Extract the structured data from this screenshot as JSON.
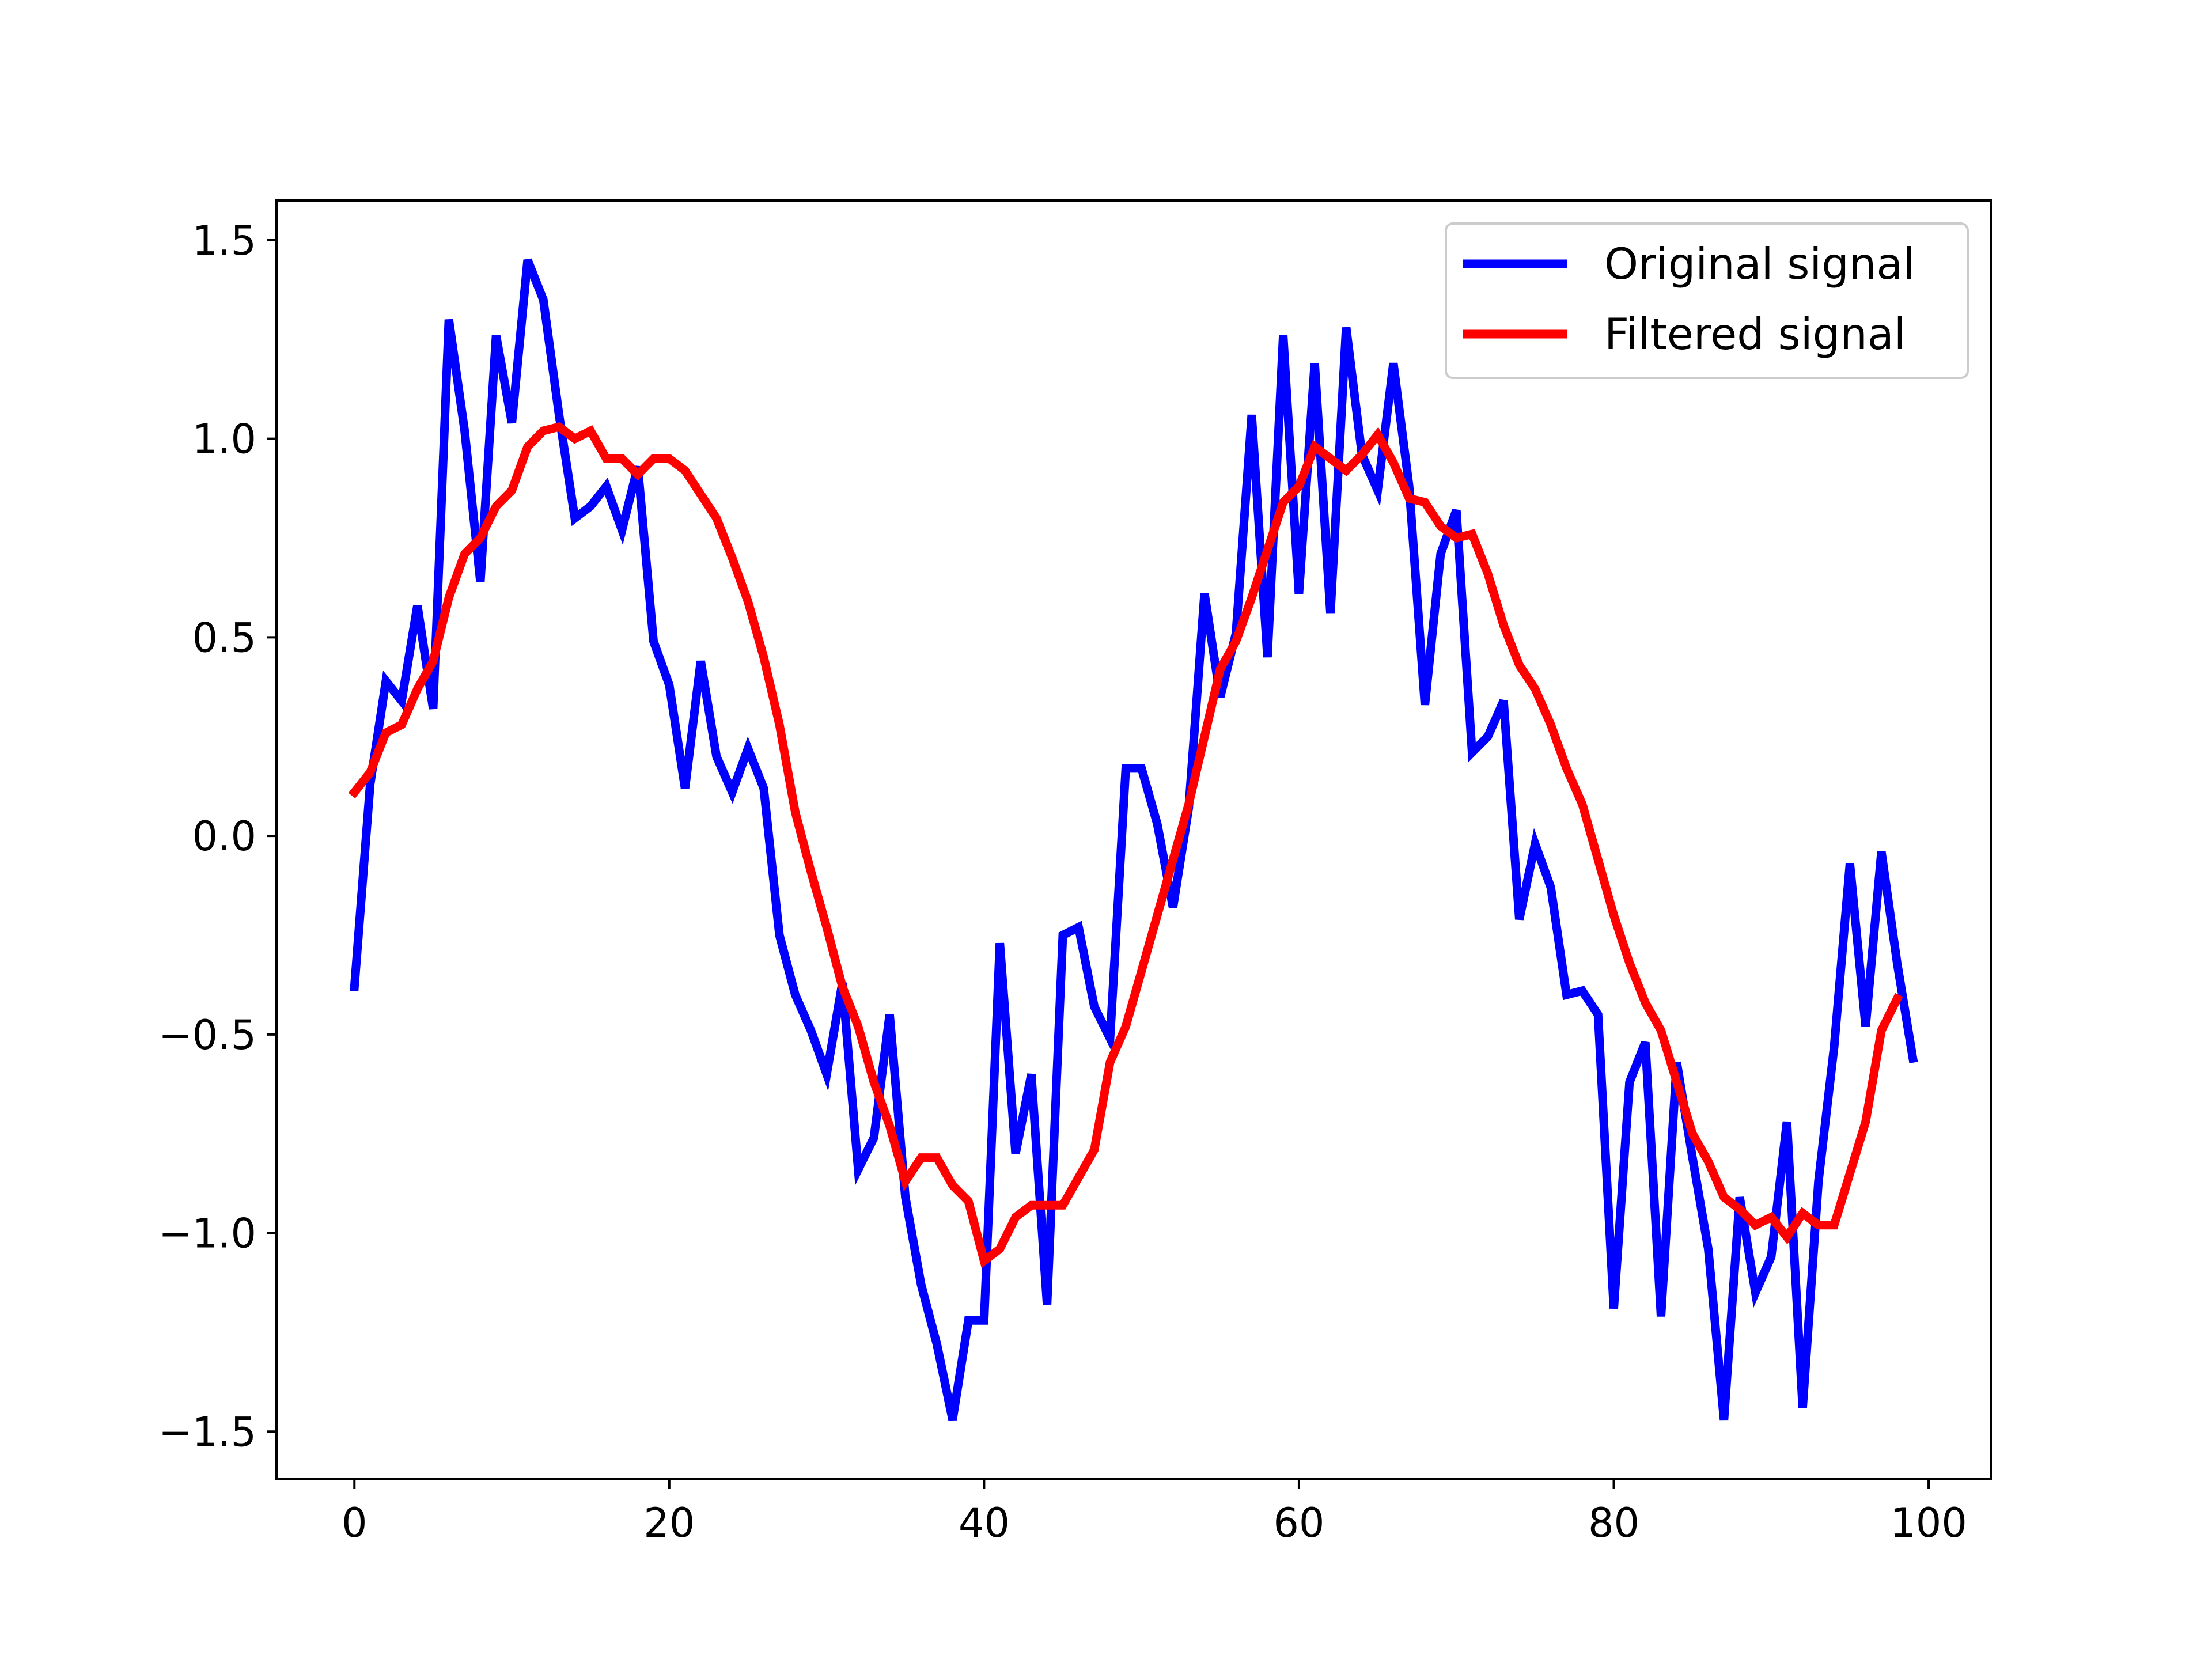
{
  "chart_data": {
    "type": "line",
    "title": "",
    "xlabel": "",
    "ylabel": "",
    "xlim": [
      -4.95,
      103.95
    ],
    "ylim": [
      -1.62,
      1.6
    ],
    "xticks": [
      0,
      20,
      40,
      60,
      80,
      100
    ],
    "yticks": [
      -1.5,
      -1.0,
      -0.5,
      0.0,
      0.5,
      1.0,
      1.5
    ],
    "xtick_labels": [
      "0",
      "20",
      "40",
      "60",
      "80",
      "100"
    ],
    "ytick_labels": [
      "−1.5",
      "−1.0",
      "−0.5",
      "0.0",
      "0.5",
      "1.0",
      "1.5"
    ],
    "grid": false,
    "legend_position": "upper right",
    "series": [
      {
        "name": "Original signal",
        "color": "#0000ff",
        "x": [
          0,
          1,
          2,
          3,
          4,
          5,
          6,
          7,
          8,
          9,
          10,
          11,
          12,
          13,
          14,
          15,
          16,
          17,
          18,
          19,
          20,
          21,
          22,
          23,
          24,
          25,
          26,
          27,
          28,
          29,
          30,
          31,
          32,
          33,
          34,
          35,
          36,
          37,
          38,
          39,
          40,
          41,
          42,
          43,
          44,
          45,
          46,
          47,
          48,
          49,
          50,
          51,
          52,
          53,
          54,
          55,
          56,
          57,
          58,
          59,
          60,
          61,
          62,
          63,
          64,
          65,
          66,
          67,
          68,
          69,
          70,
          71,
          72,
          73,
          74,
          75,
          76,
          77,
          78,
          79,
          80,
          81,
          82,
          83,
          84,
          85,
          86,
          87,
          88,
          89,
          90,
          91,
          92,
          93,
          94,
          95,
          96,
          97,
          98,
          99
        ],
        "values": [
          -0.38,
          0.13,
          0.39,
          0.34,
          0.58,
          0.32,
          1.3,
          1.02,
          0.64,
          1.26,
          1.04,
          1.45,
          1.35,
          1.06,
          0.8,
          0.83,
          0.88,
          0.77,
          0.93,
          0.49,
          0.38,
          0.12,
          0.44,
          0.2,
          0.11,
          0.22,
          0.12,
          -0.25,
          -0.4,
          -0.49,
          -0.6,
          -0.37,
          -0.84,
          -0.76,
          -0.45,
          -0.91,
          -1.13,
          -1.28,
          -1.47,
          -1.22,
          -1.22,
          -0.27,
          -0.8,
          -0.6,
          -1.18,
          -0.25,
          -0.23,
          -0.43,
          -0.51,
          0.17,
          0.17,
          0.03,
          -0.18,
          0.07,
          0.61,
          0.35,
          0.51,
          1.06,
          0.45,
          1.26,
          0.61,
          1.19,
          0.56,
          1.28,
          0.96,
          0.87,
          1.19,
          0.88,
          0.33,
          0.71,
          0.82,
          0.21,
          0.25,
          0.34,
          -0.21,
          -0.02,
          -0.13,
          -0.4,
          -0.39,
          -0.45,
          -1.19,
          -0.62,
          -0.52,
          -1.21,
          -0.57,
          -0.81,
          -1.04,
          -1.47,
          -0.91,
          -1.15,
          -1.06,
          -0.72,
          -1.44,
          -0.87,
          -0.53,
          -0.07,
          -0.48,
          -0.04,
          -0.32,
          -0.56
        ]
      },
      {
        "name": "Filtered signal",
        "color": "#ff0000",
        "x": [
          0,
          1,
          2,
          3,
          4,
          5,
          6,
          7,
          8,
          9,
          10,
          11,
          12,
          13,
          14,
          15,
          16,
          17,
          18,
          19,
          20,
          21,
          22,
          23,
          24,
          25,
          26,
          27,
          28,
          29,
          30,
          31,
          32,
          33,
          34,
          35,
          36,
          37,
          38,
          39,
          40,
          41,
          42,
          43,
          44,
          45,
          46,
          47,
          48,
          49,
          50,
          51,
          52,
          53,
          54,
          55,
          56,
          57,
          58,
          59,
          60,
          61,
          62,
          63,
          64,
          65,
          66,
          67,
          68,
          69,
          70,
          71,
          72,
          73,
          74,
          75,
          76,
          77,
          78,
          79,
          80,
          81,
          82,
          83,
          84,
          85,
          86,
          87,
          88,
          89,
          90,
          91,
          92,
          93,
          94,
          95,
          96,
          97,
          98
        ],
        "values": [
          0.11,
          0.16,
          0.26,
          0.28,
          0.37,
          0.44,
          0.6,
          0.71,
          0.75,
          0.83,
          0.87,
          0.98,
          1.02,
          1.03,
          1.0,
          1.02,
          0.95,
          0.95,
          0.91,
          0.95,
          0.95,
          0.92,
          0.86,
          0.8,
          0.7,
          0.59,
          0.45,
          0.28,
          0.06,
          -0.09,
          -0.23,
          -0.38,
          -0.48,
          -0.62,
          -0.73,
          -0.87,
          -0.81,
          -0.81,
          -0.88,
          -0.92,
          -1.07,
          -1.04,
          -0.96,
          -0.93,
          -0.93,
          -0.93,
          -0.86,
          -0.79,
          -0.57,
          -0.48,
          -0.34,
          -0.2,
          -0.06,
          0.08,
          0.25,
          0.42,
          0.49,
          0.6,
          0.72,
          0.84,
          0.88,
          0.98,
          0.95,
          0.92,
          0.96,
          1.01,
          0.94,
          0.85,
          0.84,
          0.78,
          0.75,
          0.76,
          0.66,
          0.53,
          0.43,
          0.37,
          0.28,
          0.17,
          0.08,
          -0.06,
          -0.2,
          -0.32,
          -0.42,
          -0.49,
          -0.62,
          -0.75,
          -0.82,
          -0.91,
          -0.94,
          -0.98,
          -0.96,
          -1.01,
          -0.95,
          -0.98,
          -0.98,
          -0.85,
          -0.72,
          -0.49,
          -0.41
        ]
      }
    ]
  }
}
